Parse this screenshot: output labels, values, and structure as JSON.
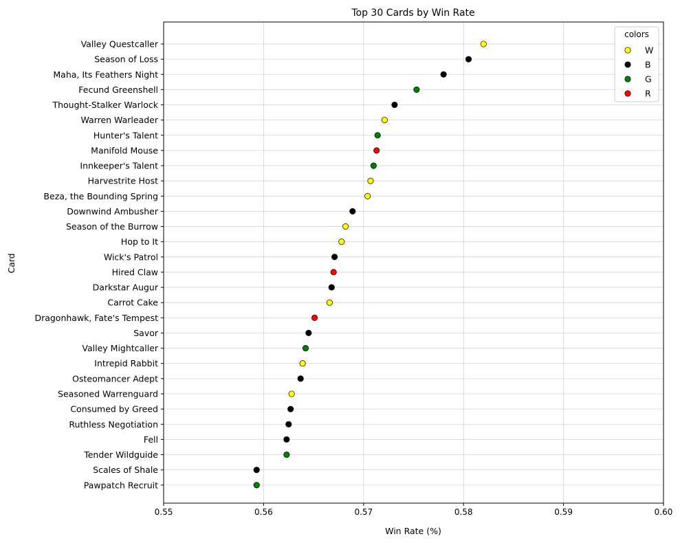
{
  "chart_data": {
    "type": "scatter",
    "title": "Top 30 Cards by Win Rate",
    "xlabel": "Win Rate (%)",
    "ylabel": "Card",
    "xlim": [
      0.55,
      0.6
    ],
    "xticks": [
      "0.55",
      "0.56",
      "0.57",
      "0.58",
      "0.59",
      "0.60"
    ],
    "grid": true,
    "legend": {
      "title": "colors",
      "placement": "top-right",
      "entries": [
        {
          "label": "W",
          "color": "#ffff00"
        },
        {
          "label": "B",
          "color": "#000000"
        },
        {
          "label": "G",
          "color": "#008000"
        },
        {
          "label": "R",
          "color": "#ff0000"
        }
      ]
    },
    "points": [
      {
        "card": "Valley Questcaller",
        "win_rate": 0.582,
        "color": "W"
      },
      {
        "card": "Season of Loss",
        "win_rate": 0.5805,
        "color": "B"
      },
      {
        "card": "Maha, Its Feathers Night",
        "win_rate": 0.578,
        "color": "B"
      },
      {
        "card": "Fecund Greenshell",
        "win_rate": 0.5753,
        "color": "G"
      },
      {
        "card": "Thought-Stalker Warlock",
        "win_rate": 0.5731,
        "color": "B"
      },
      {
        "card": "Warren Warleader",
        "win_rate": 0.5721,
        "color": "W"
      },
      {
        "card": "Hunter's Talent",
        "win_rate": 0.5714,
        "color": "G"
      },
      {
        "card": "Manifold Mouse",
        "win_rate": 0.5713,
        "color": "R"
      },
      {
        "card": "Innkeeper's Talent",
        "win_rate": 0.571,
        "color": "G"
      },
      {
        "card": "Harvestrite Host",
        "win_rate": 0.5707,
        "color": "W"
      },
      {
        "card": "Beza, the Bounding Spring",
        "win_rate": 0.5704,
        "color": "W"
      },
      {
        "card": "Downwind Ambusher",
        "win_rate": 0.5689,
        "color": "B"
      },
      {
        "card": "Season of the Burrow",
        "win_rate": 0.5682,
        "color": "W"
      },
      {
        "card": "Hop to It",
        "win_rate": 0.5678,
        "color": "W"
      },
      {
        "card": "Wick's Patrol",
        "win_rate": 0.5671,
        "color": "B"
      },
      {
        "card": "Hired Claw",
        "win_rate": 0.567,
        "color": "R"
      },
      {
        "card": "Darkstar Augur",
        "win_rate": 0.5668,
        "color": "B"
      },
      {
        "card": "Carrot Cake",
        "win_rate": 0.5666,
        "color": "W"
      },
      {
        "card": "Dragonhawk, Fate's Tempest",
        "win_rate": 0.5651,
        "color": "R"
      },
      {
        "card": "Savor",
        "win_rate": 0.5645,
        "color": "B"
      },
      {
        "card": "Valley Mightcaller",
        "win_rate": 0.5642,
        "color": "G"
      },
      {
        "card": "Intrepid Rabbit",
        "win_rate": 0.5639,
        "color": "W"
      },
      {
        "card": "Osteomancer Adept",
        "win_rate": 0.5637,
        "color": "B"
      },
      {
        "card": "Seasoned Warrenguard",
        "win_rate": 0.5628,
        "color": "W"
      },
      {
        "card": "Consumed by Greed",
        "win_rate": 0.5627,
        "color": "B"
      },
      {
        "card": "Ruthless Negotiation",
        "win_rate": 0.5625,
        "color": "B"
      },
      {
        "card": "Fell",
        "win_rate": 0.5623,
        "color": "B"
      },
      {
        "card": "Tender Wildguide",
        "win_rate": 0.5623,
        "color": "G"
      },
      {
        "card": "Scales of Shale",
        "win_rate": 0.5593,
        "color": "B"
      },
      {
        "card": "Pawpatch Recruit",
        "win_rate": 0.5593,
        "color": "G"
      }
    ]
  }
}
